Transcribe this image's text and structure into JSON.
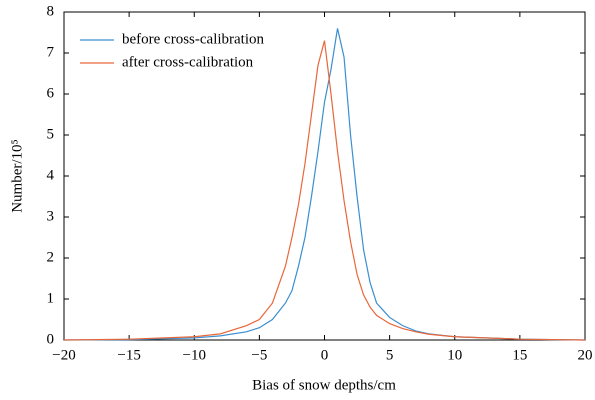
{
  "chart_data": {
    "type": "line",
    "xlabel": "Bias of snow depths/cm",
    "ylabel": "Number/10⁵",
    "x": [
      -20,
      -15,
      -10,
      -8,
      -6,
      -5,
      -4,
      -3,
      -2.5,
      -2,
      -1.5,
      -1,
      -0.5,
      0,
      0.5,
      1,
      1.5,
      2,
      2.5,
      3,
      3.5,
      4,
      5,
      6,
      7,
      8,
      10,
      15,
      20
    ],
    "series": [
      {
        "name": "before cross-calibration",
        "color": "#3a8fd0",
        "values": [
          0,
          0.01,
          0.05,
          0.1,
          0.2,
          0.3,
          0.5,
          0.9,
          1.2,
          1.8,
          2.5,
          3.5,
          4.6,
          5.8,
          6.6,
          7.6,
          6.9,
          5,
          3.5,
          2.2,
          1.4,
          0.9,
          0.55,
          0.35,
          0.22,
          0.15,
          0.08,
          0.02,
          0
        ]
      },
      {
        "name": "after cross-calibration",
        "color": "#e8673a",
        "values": [
          0,
          0.02,
          0.08,
          0.15,
          0.35,
          0.5,
          0.9,
          1.8,
          2.5,
          3.3,
          4.3,
          5.5,
          6.7,
          7.3,
          6,
          4.6,
          3.4,
          2.4,
          1.6,
          1.1,
          0.8,
          0.6,
          0.4,
          0.28,
          0.2,
          0.14,
          0.08,
          0.02,
          0
        ]
      }
    ],
    "xlim": [
      -20,
      20
    ],
    "xticks": [
      {
        "value": -20,
        "label": "−20"
      },
      {
        "value": -15,
        "label": "−15"
      },
      {
        "value": -10,
        "label": "−10"
      },
      {
        "value": -5,
        "label": "−5"
      },
      0,
      5,
      10,
      15,
      20
    ],
    "ylim": [
      0,
      8
    ],
    "yticks": [
      0,
      1,
      2,
      3,
      4,
      5,
      6,
      7,
      8
    ],
    "legend": "upper-left"
  }
}
